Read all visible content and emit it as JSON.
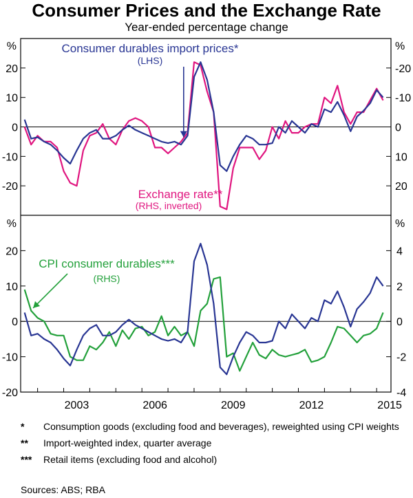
{
  "title": "Consumer Prices and the Exchange Rate",
  "subtitle": "Year-ended percentage change",
  "colors": {
    "blue": "#283593",
    "pink": "#e0157f",
    "green": "#22a03a",
    "axis": "#000000"
  },
  "chart_data": [
    {
      "type": "line",
      "panel": "top",
      "left_unit": "%",
      "right_unit": "%",
      "left_axis": {
        "ylim": [
          -30,
          30
        ],
        "ticks": [
          "20",
          "10",
          "0",
          "-10",
          "-20"
        ]
      },
      "right_axis": {
        "ylim": [
          30,
          -30
        ],
        "inverted": true,
        "ticks": [
          "-20",
          "-10",
          "0",
          "10",
          "20"
        ]
      },
      "series": [
        {
          "name": "Consumer durables import prices*",
          "sub": "(LHS)",
          "color_key": "blue",
          "axis": "left",
          "x": [
            2001.5,
            2001.75,
            2002,
            2002.25,
            2002.5,
            2002.75,
            2003,
            2003.25,
            2003.5,
            2003.75,
            2004,
            2004.25,
            2004.5,
            2004.75,
            2005,
            2005.25,
            2005.5,
            2005.75,
            2006,
            2006.25,
            2006.5,
            2006.75,
            2007,
            2007.25,
            2007.5,
            2007.75,
            2008,
            2008.25,
            2008.5,
            2008.75,
            2009,
            2009.25,
            2009.5,
            2009.75,
            2010,
            2010.25,
            2010.5,
            2010.75,
            2011,
            2011.25,
            2011.5,
            2011.75,
            2012,
            2012.25,
            2012.5,
            2012.75,
            2013,
            2013.25,
            2013.5,
            2013.75,
            2014,
            2014.25,
            2014.5,
            2014.75,
            2015,
            2015.25
          ],
          "y": [
            2.5,
            -4,
            -3.5,
            -5,
            -6,
            -8,
            -10.5,
            -12.5,
            -8,
            -4,
            -2,
            -1,
            -4,
            -4,
            -3,
            -1,
            0.5,
            -1,
            -2,
            -3,
            -4,
            -5,
            -5.5,
            -5,
            -6,
            -3,
            17,
            22,
            16,
            5,
            -13,
            -15,
            -10,
            -6,
            -3,
            -4,
            -6,
            -6,
            -5.5,
            0,
            -2,
            2,
            0,
            -2,
            1,
            0,
            6,
            5,
            8.5,
            4,
            -1.5,
            3.5,
            5.5,
            8,
            12.5,
            10
          ]
        },
        {
          "name": "Exchange rate**",
          "sub": "(RHS, inverted)",
          "color_key": "pink",
          "axis": "right",
          "x": [
            2001.5,
            2001.75,
            2002,
            2002.25,
            2002.5,
            2002.75,
            2003,
            2003.25,
            2003.5,
            2003.75,
            2004,
            2004.25,
            2004.5,
            2004.75,
            2005,
            2005.25,
            2005.5,
            2005.75,
            2006,
            2006.25,
            2006.5,
            2006.75,
            2007,
            2007.25,
            2007.5,
            2007.75,
            2008,
            2008.25,
            2008.5,
            2008.75,
            2009,
            2009.25,
            2009.5,
            2009.75,
            2010,
            2010.25,
            2010.5,
            2010.75,
            2011,
            2011.25,
            2011.5,
            2011.75,
            2012,
            2012.25,
            2012.5,
            2012.75,
            2013,
            2013.25,
            2013.5,
            2013.75,
            2014,
            2014.25,
            2014.5,
            2014.75,
            2015,
            2015.25
          ],
          "y": [
            0,
            6,
            3,
            5,
            5,
            7,
            15,
            19,
            20,
            8,
            3,
            2,
            -1,
            4,
            6,
            1,
            -2,
            -3,
            -2,
            0,
            7,
            7,
            9,
            7,
            5,
            2,
            -22,
            -21,
            -12,
            -5,
            27,
            28,
            14,
            7,
            7,
            7,
            11,
            8,
            0,
            4,
            -2,
            2,
            2,
            0,
            -1,
            -1,
            -10,
            -8,
            -14,
            -5,
            -1,
            -5,
            -5,
            -9,
            -13,
            -9
          ]
        }
      ],
      "annotations": [
        {
          "target": "Consumer durables import prices*",
          "x": 2007.6,
          "y": -4,
          "kind": "arrow"
        }
      ]
    },
    {
      "type": "line",
      "panel": "bottom",
      "left_unit": "%",
      "right_unit": "%",
      "left_axis": {
        "ylim": [
          -20,
          30
        ],
        "ticks": [
          "20",
          "10",
          "0",
          "-10",
          "-20"
        ]
      },
      "right_axis": {
        "ylim": [
          -4,
          6
        ],
        "ticks": [
          "4",
          "2",
          "0",
          "-2",
          "-4"
        ]
      },
      "xlim": [
        2001.35,
        2015.55
      ],
      "x_ticks": [
        "2003",
        "2006",
        "2009",
        "2012",
        "2015"
      ],
      "x_tick_values": [
        2003,
        2006,
        2009,
        2012,
        2015
      ],
      "series": [
        {
          "name": "Consumer durables import prices*",
          "color_key": "blue",
          "axis": "left",
          "x": [
            2001.5,
            2001.75,
            2002,
            2002.25,
            2002.5,
            2002.75,
            2003,
            2003.25,
            2003.5,
            2003.75,
            2004,
            2004.25,
            2004.5,
            2004.75,
            2005,
            2005.25,
            2005.5,
            2005.75,
            2006,
            2006.25,
            2006.5,
            2006.75,
            2007,
            2007.25,
            2007.5,
            2007.75,
            2008,
            2008.25,
            2008.5,
            2008.75,
            2009,
            2009.25,
            2009.5,
            2009.75,
            2010,
            2010.25,
            2010.5,
            2010.75,
            2011,
            2011.25,
            2011.5,
            2011.75,
            2012,
            2012.25,
            2012.5,
            2012.75,
            2013,
            2013.25,
            2013.5,
            2013.75,
            2014,
            2014.25,
            2014.5,
            2014.75,
            2015,
            2015.25
          ],
          "y": [
            2.5,
            -4,
            -3.5,
            -5,
            -6,
            -8,
            -10.5,
            -12.5,
            -8,
            -4,
            -2,
            -1,
            -4,
            -4,
            -3,
            -1,
            0.5,
            -1,
            -2,
            -3,
            -4,
            -5,
            -5.5,
            -5,
            -6,
            -3,
            17,
            22,
            16,
            5,
            -13,
            -15,
            -10,
            -6,
            -3,
            -4,
            -6,
            -6,
            -5.5,
            0,
            -2,
            2,
            0,
            -2,
            1,
            0,
            6,
            5,
            8.5,
            4,
            -1.5,
            3.5,
            5.5,
            8,
            12.5,
            10
          ]
        },
        {
          "name": "CPI consumer durables***",
          "sub": "(RHS)",
          "color_key": "green",
          "axis": "right",
          "x": [
            2001.5,
            2001.75,
            2002,
            2002.25,
            2002.5,
            2002.75,
            2003,
            2003.25,
            2003.5,
            2003.75,
            2004,
            2004.25,
            2004.5,
            2004.75,
            2005,
            2005.25,
            2005.5,
            2005.75,
            2006,
            2006.25,
            2006.5,
            2006.75,
            2007,
            2007.25,
            2007.5,
            2007.75,
            2008,
            2008.25,
            2008.5,
            2008.75,
            2009,
            2009.25,
            2009.5,
            2009.75,
            2010,
            2010.25,
            2010.5,
            2010.75,
            2011,
            2011.25,
            2011.5,
            2011.75,
            2012,
            2012.25,
            2012.5,
            2012.75,
            2013,
            2013.25,
            2013.5,
            2013.75,
            2014,
            2014.25,
            2014.5,
            2014.75,
            2015,
            2015.25
          ],
          "y": [
            1.8,
            0.6,
            0.2,
            0,
            -0.7,
            -0.8,
            -0.8,
            -2,
            -2.2,
            -2.2,
            -1.4,
            -1.6,
            -1.2,
            -0.6,
            -1.4,
            -0.5,
            -1,
            -0.4,
            -0.3,
            -0.8,
            -0.6,
            0.3,
            -0.8,
            -0.3,
            -0.8,
            -0.6,
            -1.4,
            0.6,
            1,
            2.4,
            2.5,
            -2,
            -1.8,
            -2.8,
            -2,
            -1.2,
            -1.9,
            -2.1,
            -1.6,
            -1.9,
            -2,
            -1.9,
            -1.8,
            -1.6,
            -2.3,
            -2.2,
            -2,
            -1.2,
            -0.3,
            -0.4,
            -0.8,
            -1.2,
            -0.8,
            -0.7,
            -0.4,
            0.5
          ]
        }
      ],
      "annotations": [
        {
          "target": "CPI consumer durables***",
          "x": 2001.75,
          "y": 0.6,
          "kind": "arrow"
        }
      ]
    }
  ],
  "notes": [
    {
      "mark": "*",
      "text": "Consumption goods (excluding food and beverages), reweighted using CPI weights"
    },
    {
      "mark": "**",
      "text": "Import-weighted index, quarter average"
    },
    {
      "mark": "***",
      "text": "Retail items (excluding food and alcohol)"
    }
  ],
  "sources": "Sources:   ABS; RBA"
}
